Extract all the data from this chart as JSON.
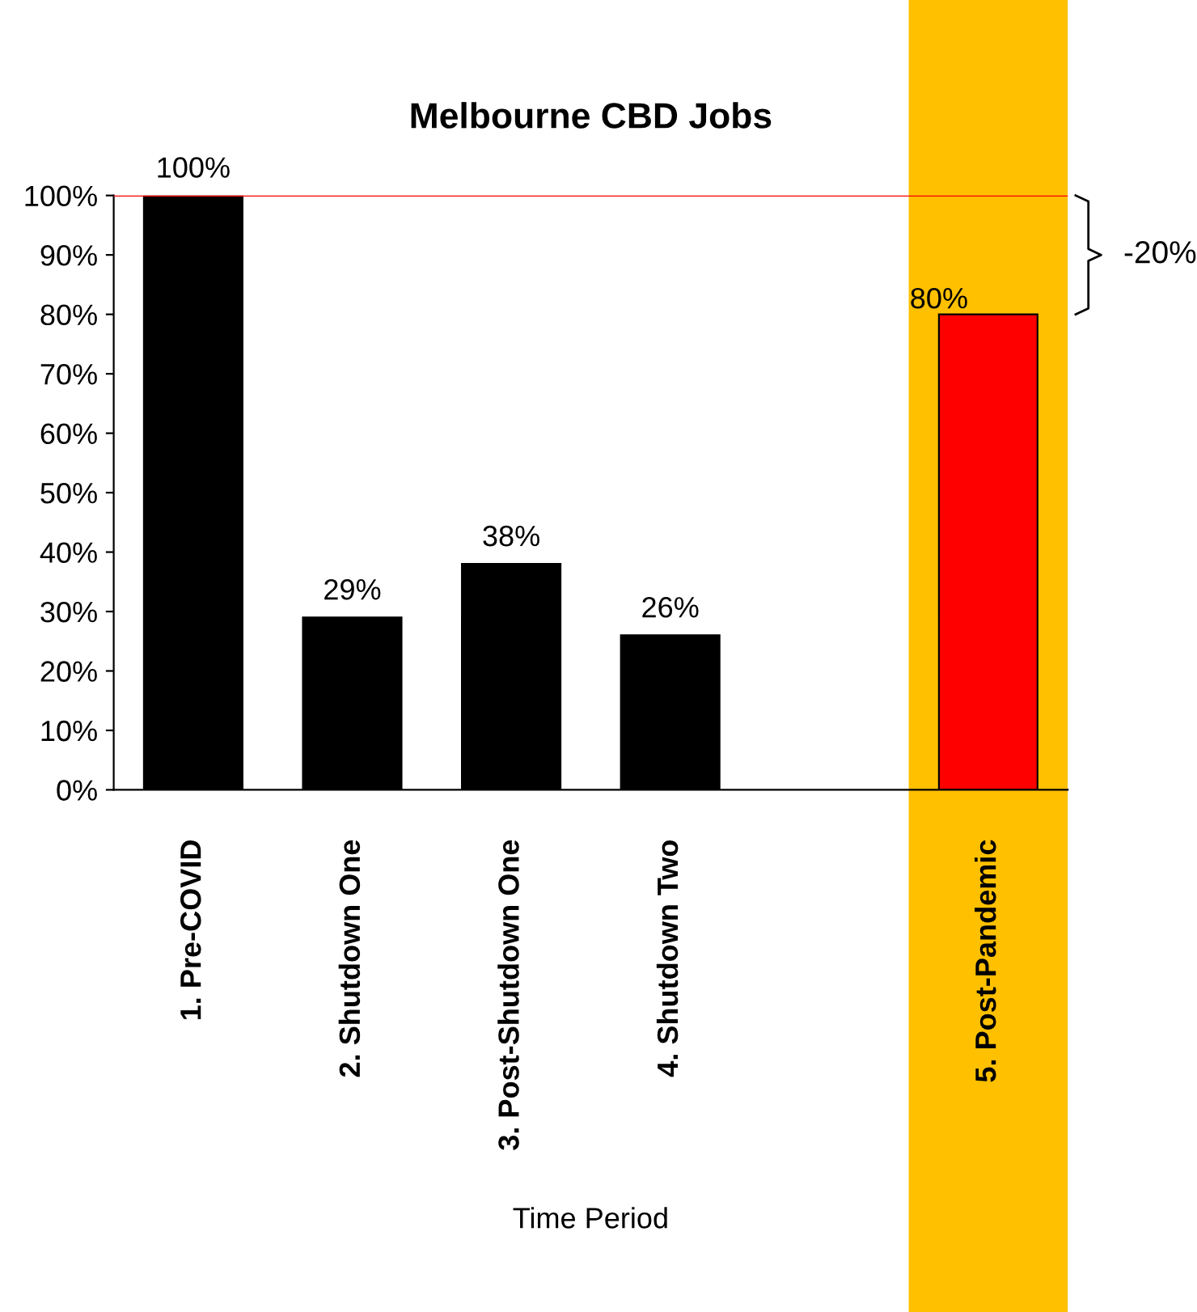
{
  "chart_data": {
    "type": "bar",
    "title": "Melbourne CBD Jobs",
    "xlabel": "Time Period",
    "categories": [
      "1. Pre-COVID",
      "2. Shutdown One",
      "3. Post-Shutdown One",
      "4. Shutdown Two",
      null,
      "5. Post-Pandemic"
    ],
    "values": [
      100,
      29,
      38,
      26,
      null,
      80
    ],
    "colors": [
      "#000000",
      "#000000",
      "#000000",
      "#000000",
      "#000000",
      "#ff0000"
    ],
    "value_labels": [
      "100%",
      "29%",
      "38%",
      "26%",
      null,
      "80%"
    ],
    "ylim": [
      0,
      100
    ],
    "yticks": [
      {
        "value": 0,
        "label": "0%"
      },
      {
        "value": 10,
        "label": "10%"
      },
      {
        "value": 20,
        "label": "20%"
      },
      {
        "value": 30,
        "label": "30%"
      },
      {
        "value": 40,
        "label": "40%"
      },
      {
        "value": 50,
        "label": "50%"
      },
      {
        "value": 60,
        "label": "60%"
      },
      {
        "value": 70,
        "label": "70%"
      },
      {
        "value": 80,
        "label": "80%"
      },
      {
        "value": 90,
        "label": "90%"
      },
      {
        "value": 100,
        "label": "100%"
      }
    ],
    "ref_lines": [
      {
        "axis": "y",
        "value": 100,
        "color": "#ff0000"
      }
    ],
    "bands": [
      {
        "axis": "x",
        "from": "5. Post-Pandemic",
        "to": "5. Post-Pandemic",
        "color": "#ffc000"
      }
    ],
    "annotations": [
      "-20%"
    ],
    "grid": false
  }
}
